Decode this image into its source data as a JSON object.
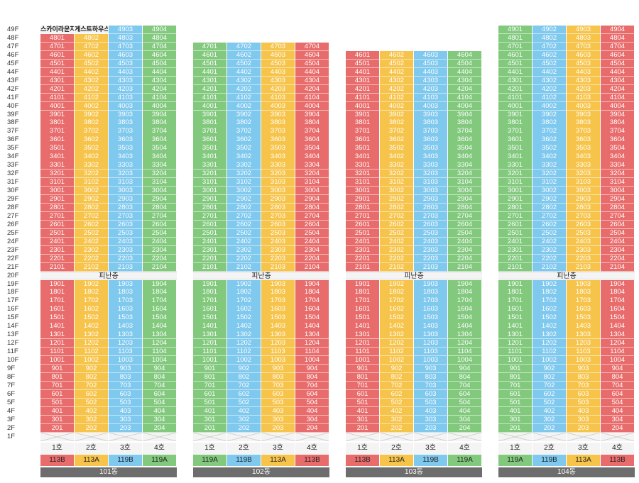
{
  "floors": [
    "49F",
    "48F",
    "47F",
    "46F",
    "45F",
    "44F",
    "43F",
    "42F",
    "41F",
    "40F",
    "39F",
    "38F",
    "37F",
    "36F",
    "35F",
    "34F",
    "33F",
    "32F",
    "31F",
    "30F",
    "29F",
    "28F",
    "27F",
    "26F",
    "25F",
    "24F",
    "23F",
    "22F",
    "21F",
    "20F",
    "19F",
    "18F",
    "17F",
    "16F",
    "15F",
    "14F",
    "13F",
    "12F",
    "11F",
    "10F",
    "9F",
    "8F",
    "7F",
    "6F",
    "5F",
    "4F",
    "3F",
    "2F",
    "1F"
  ],
  "refuge_label": "피난층",
  "colors": {
    "red": "#e86c6c",
    "orange": "#f7c44b",
    "blue": "#7fc8ee",
    "green": "#82c97e",
    "dark": "#6d6d6d"
  },
  "buildings": [
    {
      "name": "101동",
      "top_floor": 48,
      "lines": [
        {
          "ho": "1호",
          "type": "113B",
          "color_upper": "red",
          "color_lower": "red",
          "type_color": "red"
        },
        {
          "ho": "2호",
          "type": "113A",
          "color_upper": "orange",
          "color_lower": "orange",
          "type_color": "orange"
        },
        {
          "ho": "3호",
          "type": "119B",
          "color_upper": "blue",
          "color_lower": "blue",
          "type_color": "blue"
        },
        {
          "ho": "4호",
          "type": "119A",
          "color_upper": "green",
          "color_lower": "green",
          "type_color": "green"
        }
      ],
      "penthouse": {
        "floor_label": "49F",
        "units": [
          "스카이라운지",
          "게스트하우스",
          "4903",
          "4904"
        ]
      }
    },
    {
      "name": "102동",
      "top_floor": 47,
      "lines": [
        {
          "ho": "1호",
          "type": "119A",
          "color_upper": "green",
          "color_lower": "green",
          "type_color": "green"
        },
        {
          "ho": "2호",
          "type": "119B",
          "color_upper": "blue",
          "color_lower": "blue",
          "type_color": "blue"
        },
        {
          "ho": "3호",
          "type": "113A",
          "color_upper": "orange",
          "color_lower": "orange",
          "type_color": "orange"
        },
        {
          "ho": "4호",
          "type": "113B",
          "color_upper": "red",
          "color_lower": "red",
          "type_color": "red"
        }
      ]
    },
    {
      "name": "103동",
      "top_floor": 46,
      "lines": [
        {
          "ho": "1호",
          "type": "113B",
          "color_upper": "red",
          "color_lower": "red",
          "type_color": "red"
        },
        {
          "ho": "2호",
          "type": "113A",
          "color_upper": "orange",
          "color_lower": "orange",
          "type_color": "orange"
        },
        {
          "ho": "3호",
          "type": "119B",
          "color_upper": "blue",
          "color_lower": "blue",
          "type_color": "blue"
        },
        {
          "ho": "4호",
          "type": "119A",
          "color_upper": "green",
          "color_lower": "green",
          "type_color": "green"
        }
      ]
    },
    {
      "name": "104동",
      "top_floor": 49,
      "lines": [
        {
          "ho": "1호",
          "type": "119A",
          "color_upper": "green",
          "color_lower": "green",
          "type_color": "green"
        },
        {
          "ho": "2호",
          "type": "119B",
          "color_upper": "blue",
          "color_lower": "blue",
          "type_color": "blue"
        },
        {
          "ho": "3호",
          "type": "113A",
          "color_upper": "orange",
          "color_lower": "orange",
          "type_color": "orange"
        },
        {
          "ho": "4호",
          "type": "113B",
          "color_upper": "red",
          "color_lower": "red",
          "type_color": "red"
        }
      ]
    }
  ]
}
